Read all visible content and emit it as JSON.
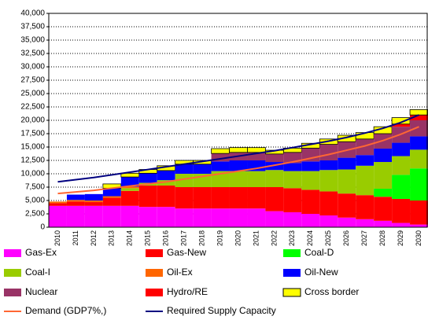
{
  "chart_data": {
    "type": "stacked-step-area",
    "categories": [
      "2010",
      "2011",
      "2012",
      "2013",
      "2014",
      "2015",
      "2016",
      "2017",
      "2018",
      "2019",
      "2020",
      "2021",
      "2022",
      "2023",
      "2024",
      "2025",
      "2026",
      "2027",
      "2028",
      "2029",
      "2030"
    ],
    "ylim": [
      0,
      40000
    ],
    "yticks": [
      0,
      {
        "value": 2500,
        "label": "2,500"
      },
      {
        "value": 5000,
        "label": "5,000"
      },
      {
        "value": 7500,
        "label": "7,500"
      },
      {
        "value": 10000,
        "label": "10,000"
      },
      {
        "value": 12500,
        "label": "12,500"
      },
      {
        "value": 15000,
        "label": "15,000"
      },
      {
        "value": 17500,
        "label": "17,500"
      },
      {
        "value": 20000,
        "label": "20,000"
      },
      {
        "value": 22500,
        "label": "22,500"
      },
      {
        "value": 25000,
        "label": "25,000"
      },
      {
        "value": 27500,
        "label": "27,500"
      },
      {
        "value": 30000,
        "label": "30,000"
      },
      {
        "value": 32500,
        "label": "32,500"
      },
      {
        "value": 35000,
        "label": "35,000"
      },
      {
        "value": 37500,
        "label": "37,500"
      },
      {
        "value": 40000,
        "label": "40,000"
      }
    ],
    "grid": true,
    "series": [
      {
        "name": "Gas-Ex",
        "color": "#ff00ff",
        "values": [
          4000,
          4000,
          4000,
          4000,
          4000,
          3800,
          3800,
          3500,
          3500,
          3500,
          3500,
          3500,
          3000,
          2800,
          2500,
          2200,
          1800,
          1500,
          1200,
          800,
          500
        ]
      },
      {
        "name": "Gas-New",
        "color": "#ff0000",
        "values": [
          500,
          800,
          700,
          1500,
          2800,
          4000,
          4000,
          4000,
          4000,
          4000,
          4000,
          4000,
          4500,
          4500,
          4500,
          4500,
          4500,
          4500,
          4500,
          4500,
          4500
        ]
      },
      {
        "name": "Coal-D",
        "color": "#00ff00",
        "values": [
          0,
          0,
          0,
          0,
          0,
          0,
          0,
          0,
          0,
          0,
          0,
          0,
          0,
          0,
          0,
          0,
          0,
          0,
          1500,
          4500,
          6000
        ]
      },
      {
        "name": "Coal-I",
        "color": "#99cc00",
        "values": [
          0,
          0,
          0,
          0,
          500,
          500,
          1000,
          2500,
          2500,
          3000,
          3000,
          3000,
          3200,
          3200,
          3500,
          4000,
          4500,
          5500,
          5000,
          3500,
          3500
        ]
      },
      {
        "name": "Oil-Ex",
        "color": "#ff6600",
        "values": [
          300,
          300,
          300,
          300,
          300,
          0,
          0,
          0,
          0,
          0,
          0,
          0,
          0,
          0,
          0,
          0,
          0,
          0,
          0,
          0,
          0
        ]
      },
      {
        "name": "Oil-New",
        "color": "#0000ff",
        "values": [
          0,
          1000,
          1200,
          1500,
          1800,
          1800,
          1800,
          1800,
          1800,
          1800,
          2000,
          2000,
          1500,
          1500,
          1800,
          1800,
          2200,
          2000,
          2500,
          2500,
          2500
        ]
      },
      {
        "name": "Nuclear",
        "color": "#993366",
        "values": [
          0,
          0,
          0,
          0,
          0,
          0,
          0,
          0,
          0,
          1500,
          1500,
          1500,
          1500,
          2000,
          2500,
          3000,
          3000,
          3000,
          2800,
          3000,
          3000
        ]
      },
      {
        "name": "Hydro/RE",
        "color": "#ff0000",
        "values": [
          0,
          0,
          0,
          0,
          0,
          0,
          0,
          0,
          0,
          0,
          0,
          0,
          0,
          0,
          0,
          0,
          0,
          0,
          0,
          500,
          1000
        ]
      },
      {
        "name": "Cross border",
        "color": "#ffff00",
        "values": [
          0,
          0,
          0,
          800,
          700,
          700,
          900,
          700,
          700,
          900,
          900,
          900,
          700,
          800,
          900,
          1000,
          1200,
          1200,
          1300,
          1200,
          1000
        ]
      }
    ],
    "lines": [
      {
        "name": "Demand (GDP7%,)",
        "color": "#ff6633",
        "values": [
          6300,
          6600,
          6900,
          7300,
          7700,
          8100,
          8500,
          9000,
          9500,
          10000,
          10500,
          11000,
          11600,
          12200,
          12900,
          13600,
          14400,
          15200,
          16200,
          17400,
          18800
        ]
      },
      {
        "name": "Required Supply Capacity",
        "color": "#000080",
        "values": [
          8500,
          8900,
          9300,
          9800,
          10300,
          10800,
          11300,
          11800,
          12300,
          12800,
          13300,
          13800,
          14300,
          14900,
          15500,
          16100,
          16800,
          17600,
          18500,
          19600,
          21000
        ]
      }
    ]
  }
}
